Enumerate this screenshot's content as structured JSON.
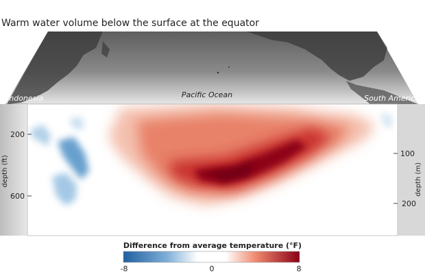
{
  "title": "Warm water volume below the surface at the equator",
  "map": {
    "left_label": "Indonesia",
    "center_label": "Pacific Ocean",
    "right_label": "South America"
  },
  "chart_data": {
    "type": "heatmap",
    "title": "Warm water volume below the surface at the equator",
    "left_axis": {
      "label": "depth (ft)",
      "ticks": [
        200,
        600
      ]
    },
    "right_axis": {
      "label": "depth (m)",
      "ticks": [
        100,
        200
      ]
    },
    "colorbar": {
      "title": "Difference from average temperature (°F)",
      "min": -8,
      "max": 8,
      "ticks": [
        -8,
        0,
        8
      ],
      "colors": {
        "negative": "#1f5fa0",
        "neutral": "#ffffff",
        "positive": "#8b0015"
      }
    },
    "anomalies": [
      {
        "sign": "warm",
        "description_free": true
      },
      {
        "sign": "cool",
        "description_free": true
      }
    ]
  }
}
